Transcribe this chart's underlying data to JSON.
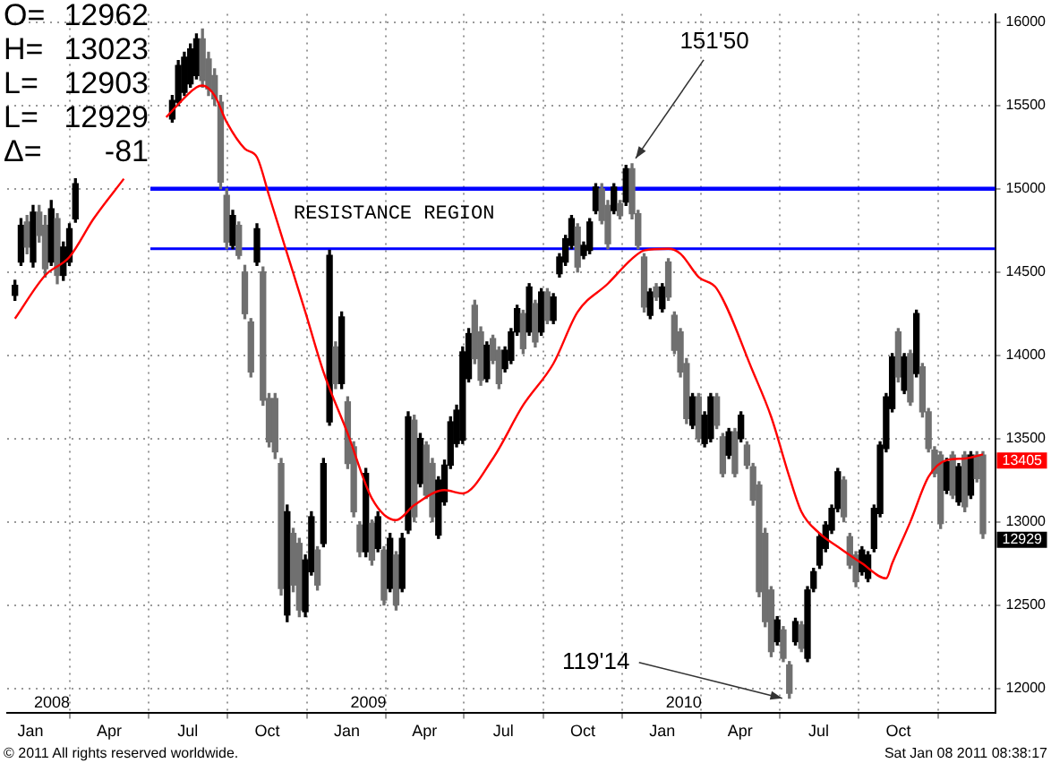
{
  "chart_data": {
    "type": "candlestick",
    "colors": [
      "#000000",
      "#000000",
      "#707070",
      "#000000",
      "#707070",
      "#707070",
      "#000000",
      "#707070",
      "#000000",
      "#000000",
      "#000000",
      "#000000",
      "#000000",
      "#000000",
      "#000000",
      "#000000",
      "#707070",
      "#707070",
      "#707070",
      "#707070",
      "#707070",
      "#000000",
      "#707070",
      "#707070",
      "#707070",
      "#000000",
      "#707070",
      "#707070",
      "#707070",
      "#707070",
      "#000000",
      "#707070",
      "#707070",
      "#000000",
      "#000000",
      "#707070",
      "#000000",
      "#000000",
      "#707070",
      "#000000",
      "#707070",
      "#707070",
      "#707070",
      "#000000",
      "#707070",
      "#000000",
      "#707070",
      "#000000",
      "#707070",
      "#000000",
      "#000000",
      "#707070",
      "#000000",
      "#707070",
      "#707070",
      "#000000",
      "#000000",
      "#000000",
      "#000000",
      "#000000",
      "#000000",
      "#707070",
      "#707070",
      "#000000",
      "#707070",
      "#707070",
      "#000000",
      "#000000",
      "#000000",
      "#707070",
      "#000000",
      "#707070",
      "#000000",
      "#707070",
      "#000000",
      "#000000",
      "#000000",
      "#000000",
      "#707070",
      "#000000",
      "#000000",
      "#000000",
      "#707070",
      "#707070",
      "#000000",
      "#707070",
      "#000000",
      "#707070",
      "#707070",
      "#707070",
      "#000000",
      "#707070",
      "#000000",
      "#707070",
      "#707070",
      "#707070",
      "#707070",
      "#000000",
      "#707070",
      "#000000",
      "#000000",
      "#707070",
      "#707070",
      "#000000",
      "#707070",
      "#000000",
      "#707070",
      "#707070",
      "#707070",
      "#707070",
      "#707070",
      "#000000",
      "#707070",
      "#707070",
      "#000000",
      "#707070",
      "#000000",
      "#000000",
      "#000000",
      "#000000",
      "#000000",
      "#000000",
      "#707070",
      "#707070",
      "#707070",
      "#000000",
      "#000000",
      "#000000",
      "#000000",
      "#000000",
      "#000000",
      "#707070",
      "#000000",
      "#707070",
      "#000000",
      "#707070",
      "#707070",
      "#707070",
      "#707070",
      "#000000",
      "#707070",
      "#000000",
      "#707070",
      "#000000",
      "#707070",
      "#707070"
    ],
    "x": [
      "2007-12-14",
      "2007-12-21",
      "2007-12-28",
      "2008-01-04",
      "2008-01-11",
      "2008-01-18",
      "2008-01-25",
      "2008-02-01",
      "2008-02-08",
      "2008-02-15",
      "2008-02-22",
      "2008-06-13",
      "2008-06-20",
      "2008-06-27",
      "2008-07-04",
      "2008-07-11",
      "2008-07-18",
      "2008-07-25",
      "2008-08-01",
      "2008-08-08",
      "2008-08-15",
      "2008-08-22",
      "2008-08-29",
      "2008-09-05",
      "2008-09-12",
      "2008-09-19",
      "2008-09-26",
      "2008-10-03",
      "2008-10-10",
      "2008-10-17",
      "2008-10-24",
      "2008-10-31",
      "2008-11-07",
      "2008-11-14",
      "2008-11-21",
      "2008-11-28",
      "2008-12-05",
      "2008-12-12",
      "2008-12-19",
      "2008-12-26",
      "2009-01-02",
      "2009-01-09",
      "2009-01-16",
      "2009-01-23",
      "2009-01-30",
      "2009-02-06",
      "2009-02-13",
      "2009-02-20",
      "2009-02-27",
      "2009-03-06",
      "2009-03-13",
      "2009-03-20",
      "2009-03-27",
      "2009-04-03",
      "2009-04-10",
      "2009-04-17",
      "2009-04-24",
      "2009-05-01",
      "2009-05-08",
      "2009-05-15",
      "2009-05-22",
      "2009-05-29",
      "2009-06-05",
      "2009-06-12",
      "2009-06-19",
      "2009-06-26",
      "2009-07-03",
      "2009-07-10",
      "2009-07-17",
      "2009-07-24",
      "2009-07-31",
      "2009-08-07",
      "2009-08-14",
      "2009-08-21",
      "2009-08-28",
      "2009-09-04",
      "2009-09-11",
      "2009-09-18",
      "2009-09-25",
      "2009-10-02",
      "2009-10-09",
      "2009-10-16",
      "2009-10-23",
      "2009-10-30",
      "2009-11-06",
      "2009-11-13",
      "2009-11-20",
      "2009-11-27",
      "2009-12-04",
      "2009-12-11",
      "2009-12-18",
      "2009-12-25",
      "2010-01-01",
      "2010-01-08",
      "2010-01-15",
      "2010-01-22",
      "2010-01-29",
      "2010-02-05",
      "2010-02-12",
      "2010-02-19",
      "2010-02-26",
      "2010-03-05",
      "2010-03-12",
      "2010-03-19",
      "2010-03-26",
      "2010-04-02",
      "2010-04-09",
      "2010-04-16",
      "2010-04-23",
      "2010-04-30",
      "2010-05-07",
      "2010-05-14",
      "2010-05-21",
      "2010-05-28",
      "2010-06-04",
      "2010-06-11",
      "2010-06-18",
      "2010-06-25",
      "2010-07-02",
      "2010-07-09",
      "2010-07-16",
      "2010-07-23",
      "2010-07-30",
      "2010-08-06",
      "2010-08-13",
      "2010-08-20",
      "2010-08-27",
      "2010-09-03",
      "2010-09-10",
      "2010-09-17",
      "2010-09-24",
      "2010-10-01",
      "2010-10-08",
      "2010-10-15",
      "2010-10-22",
      "2010-10-29",
      "2010-11-05",
      "2010-11-12",
      "2010-11-19",
      "2010-11-26",
      "2010-12-03",
      "2010-12-10",
      "2010-12-17",
      "2010-12-24",
      "2010-12-31",
      "2011-01-07"
    ],
    "ohlc": [
      [
        14360,
        14450,
        14330,
        14420
      ],
      [
        14560,
        14820,
        14540,
        14780
      ],
      [
        14800,
        14840,
        14610,
        14650
      ],
      [
        14560,
        14900,
        14530,
        14860
      ],
      [
        14860,
        14900,
        14680,
        14720
      ],
      [
        14780,
        14840,
        14470,
        14520
      ],
      [
        14560,
        14930,
        14540,
        14880
      ],
      [
        14820,
        14850,
        14430,
        14480
      ],
      [
        14480,
        14680,
        14450,
        14650
      ],
      [
        14560,
        14790,
        14540,
        14760
      ],
      [
        14820,
        15060,
        14800,
        15030
      ],
      [
        15420,
        15560,
        15400,
        15530
      ],
      [
        15520,
        15770,
        15500,
        15740
      ],
      [
        15580,
        15820,
        15560,
        15790
      ],
      [
        15630,
        15870,
        15610,
        15840
      ],
      [
        15680,
        15930,
        15660,
        15900
      ],
      [
        15900,
        15960,
        15610,
        15650
      ],
      [
        15780,
        15820,
        15560,
        15600
      ],
      [
        15680,
        15720,
        15500,
        15540
      ],
      [
        15520,
        15560,
        15000,
        15040
      ],
      [
        14960,
        15000,
        14640,
        14680
      ],
      [
        14660,
        14870,
        14640,
        14840
      ],
      [
        14780,
        14800,
        14580,
        14600
      ],
      [
        14500,
        14540,
        14220,
        14250
      ],
      [
        14200,
        14220,
        13870,
        13900
      ],
      [
        14560,
        14790,
        14540,
        14760
      ],
      [
        14500,
        14530,
        13700,
        13730
      ],
      [
        13740,
        13770,
        13450,
        13480
      ],
      [
        13740,
        13770,
        13380,
        13420
      ],
      [
        13350,
        13380,
        12560,
        12600
      ],
      [
        12440,
        13100,
        12400,
        13060
      ],
      [
        12930,
        12960,
        12580,
        12620
      ],
      [
        12870,
        12900,
        12430,
        12470
      ],
      [
        12460,
        12800,
        12430,
        12770
      ],
      [
        12700,
        13060,
        12680,
        13030
      ],
      [
        12830,
        12850,
        12590,
        12620
      ],
      [
        12870,
        13380,
        12850,
        13350
      ],
      [
        13600,
        14630,
        13580,
        14600
      ],
      [
        14050,
        14080,
        13800,
        13830
      ],
      [
        13830,
        14260,
        13800,
        14230
      ],
      [
        13720,
        13750,
        13320,
        13350
      ],
      [
        13450,
        13480,
        13030,
        13060
      ],
      [
        12980,
        13000,
        12790,
        12820
      ],
      [
        12820,
        13320,
        12790,
        13290
      ],
      [
        12990,
        13010,
        12740,
        12770
      ],
      [
        12840,
        13060,
        12820,
        13030
      ],
      [
        12830,
        12850,
        12500,
        12530
      ],
      [
        12600,
        12930,
        12580,
        12900
      ],
      [
        12800,
        12820,
        12470,
        12500
      ],
      [
        12600,
        12930,
        12580,
        12900
      ],
      [
        12950,
        13660,
        12930,
        13630
      ],
      [
        13610,
        13640,
        13000,
        13030
      ],
      [
        13230,
        13530,
        13210,
        13500
      ],
      [
        13460,
        13480,
        13140,
        13160
      ],
      [
        13350,
        13380,
        13000,
        13030
      ],
      [
        12920,
        13270,
        12900,
        13250
      ],
      [
        13120,
        13370,
        13100,
        13340
      ],
      [
        13340,
        13630,
        13320,
        13600
      ],
      [
        13470,
        13700,
        13450,
        13670
      ],
      [
        13490,
        14050,
        13470,
        14020
      ],
      [
        13860,
        14160,
        13840,
        14130
      ],
      [
        14300,
        14330,
        13950,
        13980
      ],
      [
        14140,
        14170,
        13820,
        13850
      ],
      [
        13860,
        14080,
        13840,
        14060
      ],
      [
        14100,
        14120,
        13950,
        13970
      ],
      [
        14030,
        14050,
        13800,
        13830
      ],
      [
        13920,
        14050,
        13900,
        14030
      ],
      [
        13970,
        14160,
        13950,
        14140
      ],
      [
        14140,
        14300,
        14120,
        14280
      ],
      [
        14250,
        14270,
        14010,
        14040
      ],
      [
        14140,
        14430,
        14120,
        14410
      ],
      [
        14310,
        14330,
        14050,
        14080
      ],
      [
        14140,
        14400,
        14120,
        14380
      ],
      [
        14380,
        14400,
        14190,
        14210
      ],
      [
        14210,
        14370,
        14190,
        14350
      ],
      [
        14490,
        14610,
        14470,
        14590
      ],
      [
        14560,
        14720,
        14540,
        14700
      ],
      [
        14660,
        14840,
        14640,
        14820
      ],
      [
        14770,
        14790,
        14500,
        14530
      ],
      [
        14600,
        14680,
        14580,
        14660
      ],
      [
        14630,
        14820,
        14610,
        14800
      ],
      [
        14870,
        15030,
        14850,
        15010
      ],
      [
        15000,
        15030,
        14790,
        14810
      ],
      [
        14900,
        14930,
        14640,
        14670
      ],
      [
        14870,
        15030,
        14850,
        15010
      ],
      [
        14910,
        14930,
        14820,
        14840
      ],
      [
        14920,
        15140,
        14900,
        15120
      ],
      [
        15120,
        15150,
        14820,
        14850
      ],
      [
        14850,
        14870,
        14640,
        14660
      ],
      [
        14590,
        14610,
        14260,
        14290
      ],
      [
        14240,
        14400,
        14220,
        14380
      ],
      [
        14410,
        14430,
        14330,
        14350
      ],
      [
        14280,
        14430,
        14260,
        14410
      ],
      [
        14560,
        14580,
        14330,
        14350
      ],
      [
        14240,
        14260,
        14010,
        14030
      ],
      [
        14140,
        14160,
        13870,
        13900
      ],
      [
        13950,
        13980,
        13590,
        13620
      ],
      [
        13580,
        13770,
        13560,
        13750
      ],
      [
        13750,
        13770,
        13480,
        13500
      ],
      [
        13470,
        13660,
        13450,
        13640
      ],
      [
        13500,
        13770,
        13480,
        13750
      ],
      [
        13750,
        13770,
        13560,
        13580
      ],
      [
        13510,
        13530,
        13270,
        13290
      ],
      [
        13400,
        13560,
        13380,
        13540
      ],
      [
        13540,
        13560,
        13270,
        13290
      ],
      [
        13500,
        13660,
        13480,
        13640
      ],
      [
        13460,
        13480,
        13320,
        13340
      ],
      [
        13330,
        13350,
        13100,
        13130
      ],
      [
        13220,
        13240,
        12550,
        12580
      ],
      [
        12930,
        12960,
        12370,
        12400
      ],
      [
        12590,
        12610,
        12190,
        12220
      ],
      [
        12280,
        12430,
        12260,
        12410
      ],
      [
        12350,
        12370,
        12160,
        12180
      ],
      [
        12140,
        12160,
        11940,
        11970
      ],
      [
        12280,
        12420,
        12260,
        12400
      ],
      [
        12380,
        12400,
        12220,
        12240
      ],
      [
        12180,
        12610,
        12160,
        12590
      ],
      [
        12600,
        12720,
        12580,
        12700
      ],
      [
        12740,
        12930,
        12720,
        12910
      ],
      [
        12840,
        13000,
        12820,
        12980
      ],
      [
        12950,
        13100,
        12930,
        13080
      ],
      [
        13080,
        13320,
        13060,
        13300
      ],
      [
        13250,
        13270,
        13000,
        13030
      ],
      [
        12910,
        12930,
        12720,
        12740
      ],
      [
        12800,
        12820,
        12610,
        12640
      ],
      [
        12700,
        12850,
        12680,
        12830
      ],
      [
        12660,
        12820,
        12640,
        12800
      ],
      [
        12840,
        13100,
        12820,
        13080
      ],
      [
        13050,
        13480,
        13030,
        13460
      ],
      [
        13440,
        13770,
        13420,
        13750
      ],
      [
        13680,
        14010,
        13660,
        13990
      ],
      [
        14140,
        14160,
        13840,
        13870
      ],
      [
        13790,
        14010,
        13770,
        13990
      ],
      [
        14010,
        14030,
        13700,
        13720
      ],
      [
        13890,
        14270,
        13870,
        14250
      ],
      [
        13930,
        13950,
        13630,
        13660
      ],
      [
        13660,
        13680,
        13420,
        13440
      ],
      [
        13430,
        13450,
        13270,
        13290
      ],
      [
        13400,
        13420,
        12960,
        12990
      ],
      [
        13190,
        13380,
        13170,
        13360
      ],
      [
        13400,
        13420,
        13140,
        13160
      ],
      [
        13120,
        13350,
        13100,
        13330
      ],
      [
        13400,
        13420,
        13060,
        13090
      ],
      [
        13160,
        13420,
        13140,
        13400
      ],
      [
        13400,
        13420,
        13240,
        13260
      ],
      [
        13400,
        13420,
        12900,
        12929
      ]
    ],
    "series": [
      {
        "type": "line",
        "color": "#ff0000",
        "x": [
          "2007-12-14",
          "2008-01-18",
          "2008-02-15",
          "2008-03-14",
          "2008-04-18",
          "2008-05-16",
          "2008-06-06",
          "2008-07-11",
          "2008-07-18",
          "2008-08-01",
          "2008-08-15",
          "2008-09-05",
          "2008-09-19",
          "2008-10-03",
          "2008-10-24",
          "2008-11-14",
          "2008-12-05",
          "2009-01-02",
          "2009-01-30",
          "2009-02-27",
          "2009-03-20",
          "2009-04-24",
          "2009-05-15",
          "2009-06-19",
          "2009-07-24",
          "2009-08-28",
          "2009-09-25",
          "2009-10-30",
          "2009-11-27",
          "2009-12-11",
          "2010-01-08",
          "2010-01-22",
          "2010-02-12",
          "2010-03-05",
          "2010-04-16",
          "2010-05-07",
          "2010-05-28",
          "2010-06-11",
          "2010-07-02",
          "2010-07-23",
          "2010-08-20",
          "2010-09-17",
          "2010-09-24",
          "2010-10-15",
          "2010-11-05",
          "2010-11-26",
          "2010-12-17",
          "2011-01-07"
        ],
        "values": [
          14220,
          14480,
          14590,
          14820,
          15060,
          null,
          15430,
          15610,
          15620,
          15560,
          15400,
          15240,
          15190,
          14960,
          14610,
          14260,
          13900,
          13530,
          13140,
          13010,
          13100,
          13190,
          13170,
          13380,
          13700,
          13950,
          14260,
          14430,
          14580,
          14630,
          14640,
          14610,
          14470,
          14400,
          13900,
          13630,
          13270,
          13060,
          12930,
          12850,
          12750,
          12660,
          12750,
          13000,
          13270,
          13370,
          13380,
          13405
        ]
      }
    ],
    "xlim": [
      "2007-12-05",
      "2011-01-21"
    ],
    "xticks": [
      {
        "value": "2008-01-01",
        "label": "Jan"
      },
      {
        "value": "2008-04-01",
        "label": "Apr"
      },
      {
        "value": "2008-07-01",
        "label": "Jul"
      },
      {
        "value": "2008-10-01",
        "label": "Oct"
      },
      {
        "value": "2009-01-01",
        "label": "Jan"
      },
      {
        "value": "2009-04-01",
        "label": "Apr"
      },
      {
        "value": "2009-07-01",
        "label": "Jul"
      },
      {
        "value": "2009-10-01",
        "label": "Oct"
      },
      {
        "value": "2010-01-01",
        "label": "Jan"
      },
      {
        "value": "2010-04-01",
        "label": "Apr"
      },
      {
        "value": "2010-07-01",
        "label": "Jul"
      },
      {
        "value": "2010-10-01",
        "label": "Oct"
      }
    ],
    "ylim": [
      11850,
      16050
    ],
    "yticks": [
      12000,
      12500,
      13000,
      13500,
      14000,
      14500,
      15000,
      15500,
      16000
    ],
    "grid": true,
    "ref_lines": [
      {
        "axis": "y",
        "value": 15000,
        "color": "#0000ff",
        "label": "RESISTANCE REGION"
      },
      {
        "axis": "y",
        "value": 14640,
        "color": "#0000ff"
      }
    ],
    "annotations": [
      "O= 12962",
      "H= 13023",
      "L= 12903",
      "L= 12929",
      "Δ= -81",
      "2008",
      "2009",
      "2010",
      {
        "text": "151'50",
        "x": "2009-11-27",
        "y": 15150
      },
      {
        "text": "119'14",
        "x": "2010-05-28",
        "y": 11940
      },
      {
        "text": "13405",
        "x": "2011-01-07",
        "y": 13405
      },
      {
        "text": "12929",
        "x": "2011-01-07",
        "y": 12929
      },
      "© 2011 All rights reserved worldwide.",
      "Sat Jan 08 2011 08:38:17"
    ]
  }
}
